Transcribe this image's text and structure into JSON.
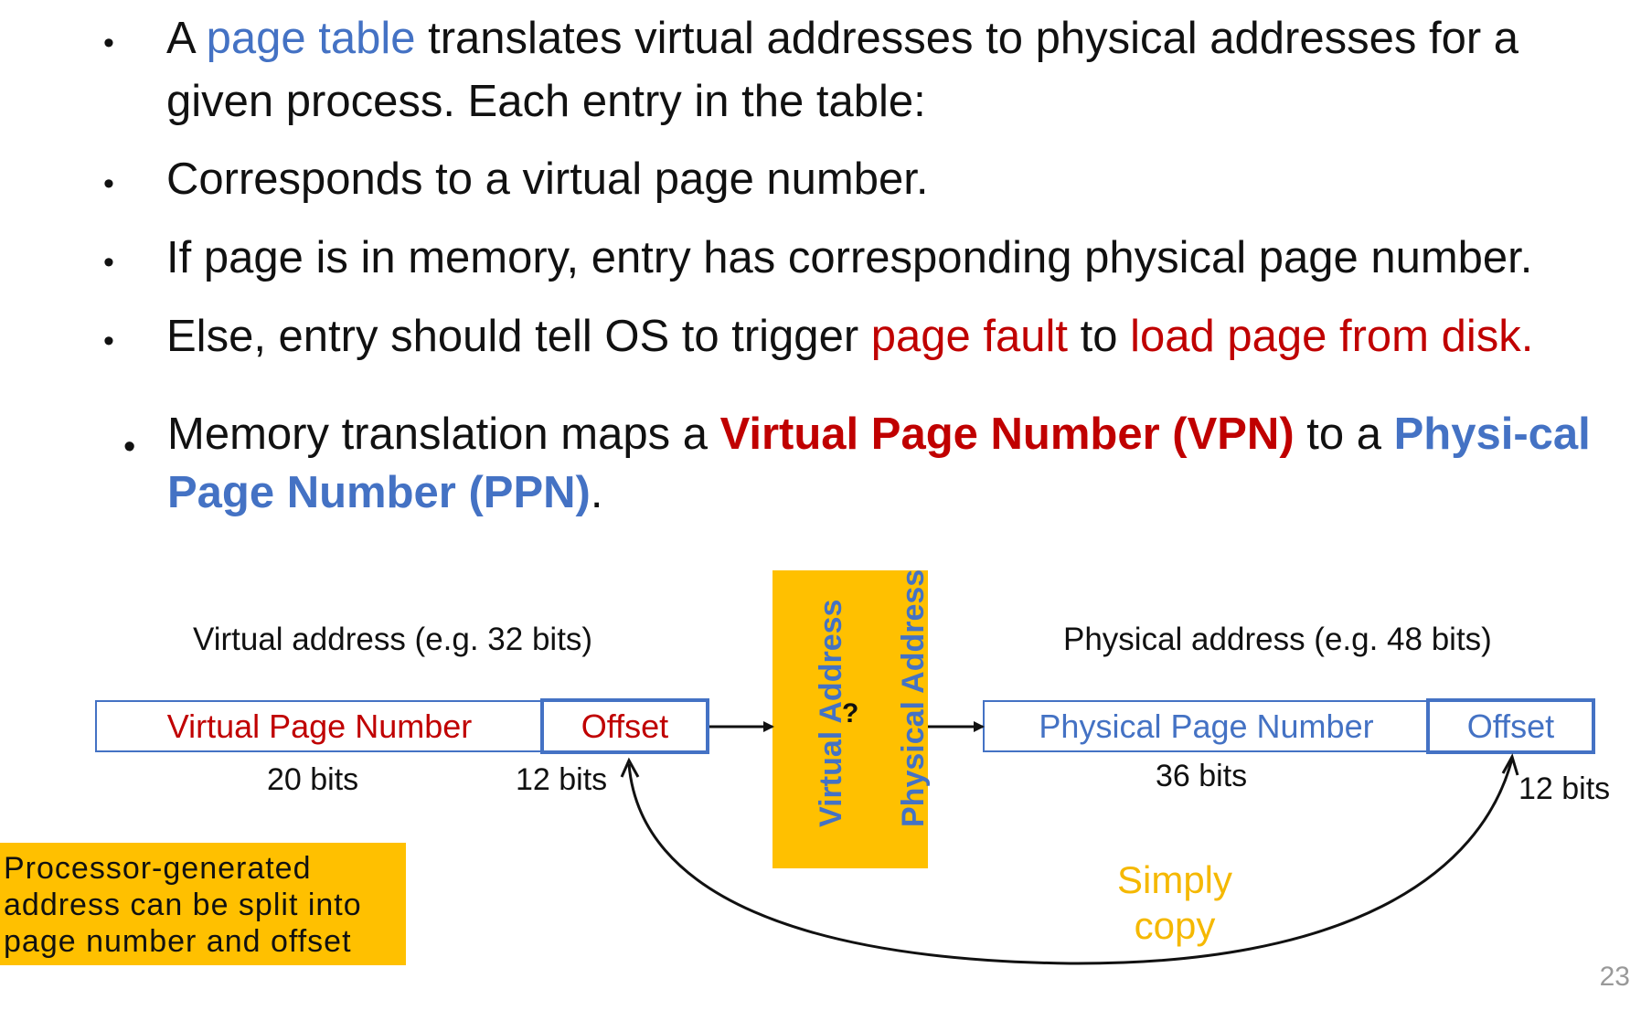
{
  "bullets": [
    {
      "marker": "•",
      "parts": [
        {
          "text": "A ",
          "style": "normal"
        },
        {
          "text": "page table",
          "style": "blue"
        },
        {
          "text": " translates virtual addresses to physical addresses for a given process. Each entry in the table:",
          "style": "normal"
        }
      ]
    },
    {
      "marker": "•",
      "parts": [
        {
          "text": "Corresponds to a virtual page number.",
          "style": "normal"
        }
      ]
    },
    {
      "marker": "•",
      "parts": [
        {
          "text": "If page is in memory, entry has corresponding physical page number.",
          "style": "normal"
        }
      ]
    },
    {
      "marker": "•",
      "parts": [
        {
          "text": "Else, entry should tell OS to trigger ",
          "style": "normal"
        },
        {
          "text": "page fault",
          "style": "red"
        },
        {
          "text": " to ",
          "style": "normal"
        },
        {
          "text": "load page from disk.",
          "style": "red"
        }
      ]
    }
  ],
  "vpn_bullet": {
    "marker": "•",
    "text_1": "Memory translation maps a ",
    "vpn": "Virtual Page Number (VPN)",
    "text_2": " to a ",
    "ppn": "Physi-cal Page Number (PPN)",
    "text_3": "."
  },
  "diagram": {
    "virtual_address_label": "Virtual address (e.g. 32 bits)",
    "physical_address_label": "Physical address (e.g. 48 bits)",
    "vpn_box": "Virtual Page Number",
    "v_offset_box": "Offset",
    "ppn_box": "Physical Page Number",
    "p_offset_box": "Offset",
    "vpn_bits": "20 bits",
    "v_offset_bits": "12 bits",
    "ppn_bits": "36 bits",
    "p_offset_bits": "12 bits",
    "translator_left": "Virtual Address",
    "translator_q": "?",
    "translator_right": "Physical Address",
    "simply_copy": "Simply copy"
  },
  "note": "Processor-generated address can be split into page number and offset",
  "page_number": "23",
  "colors": {
    "blue": "#4472C4",
    "red": "#C00000",
    "orange": "#FFC000",
    "simply_copy": "#F5B800"
  }
}
